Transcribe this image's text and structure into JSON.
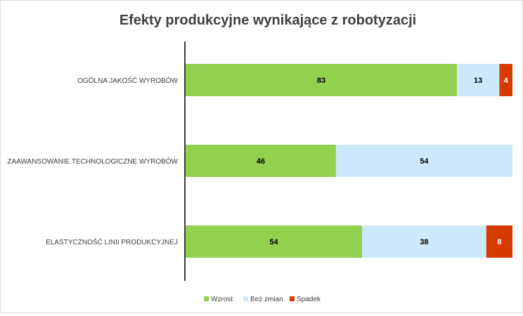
{
  "chart_data": {
    "type": "bar",
    "orientation": "horizontal",
    "stacked": true,
    "title": "Efekty produkcyjne wynikające z robotyzacji",
    "categories": [
      "OGÓLNA JAKOŚĆ WYROBÓW",
      "ZAAWANSOWANIE TECHNOLOGICZNE WYROBÓW",
      "ELASTYCZNOŚĆ LINII PRODUKCYJNEJ"
    ],
    "series": [
      {
        "name": "Wzrost",
        "color": "#92d050",
        "values": [
          83,
          46,
          54
        ],
        "labels": [
          "83",
          "46",
          "54"
        ]
      },
      {
        "name": "Bez zmian",
        "color": "#cce9fb",
        "values": [
          13,
          54,
          38
        ],
        "labels": [
          "13",
          "54",
          "38"
        ]
      },
      {
        "name": "Spadek",
        "color": "#d83b01",
        "values": [
          4,
          0,
          8
        ],
        "labels": [
          "4",
          "",
          "8"
        ]
      }
    ],
    "xlim": [
      0,
      100
    ],
    "grid": false,
    "legend_position": "bottom"
  }
}
